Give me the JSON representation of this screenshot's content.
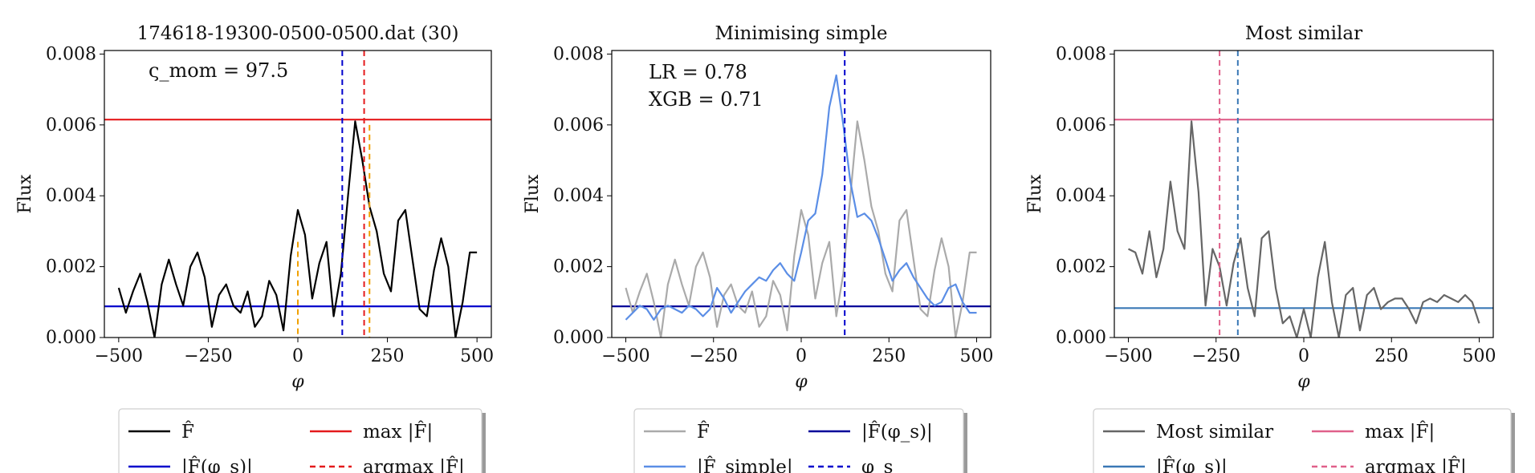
{
  "figure": {
    "panels": [
      {
        "title": "174618-19300-0500-0500.dat (30)",
        "annotations": [
          "ς_mom = 97.5"
        ],
        "xlabel": "φ",
        "ylabel": "Flux",
        "xlim": [
          -540,
          540
        ],
        "ylim": [
          0,
          0.0081
        ],
        "xticks": [
          -500,
          -250,
          0,
          250,
          500
        ],
        "xtick_labels": [
          "−500",
          "−250",
          "0",
          "250",
          "500"
        ],
        "yticks": [
          0,
          0.002,
          0.004,
          0.006,
          0.008
        ],
        "ytick_labels": [
          "0.000",
          "0.002",
          "0.004",
          "0.006",
          "0.008"
        ],
        "legend": {
          "location": "below",
          "entries": [
            {
              "label": "F̂",
              "color": "#000000",
              "style": "solid"
            },
            {
              "label": "max |F̂|",
              "color": "#e41a1c",
              "style": "solid"
            },
            {
              "label": "|F̂(φ_s)|",
              "color": "#0000cc",
              "style": "solid"
            },
            {
              "label": "argmax |F̂|",
              "color": "#e41a1c",
              "style": "dashed"
            }
          ]
        }
      },
      {
        "title": "Minimising simple",
        "annotations": [
          "LR = 0.78",
          "XGB = 0.71"
        ],
        "xlabel": "φ",
        "ylabel": "Flux",
        "xlim": [
          -540,
          540
        ],
        "ylim": [
          0,
          0.0081
        ],
        "xticks": [
          -500,
          -250,
          0,
          250,
          500
        ],
        "xtick_labels": [
          "−500",
          "−250",
          "0",
          "250",
          "500"
        ],
        "yticks": [
          0,
          0.002,
          0.004,
          0.006,
          0.008
        ],
        "ytick_labels": [
          "0.000",
          "0.002",
          "0.004",
          "0.006",
          "0.008"
        ],
        "legend": {
          "location": "below",
          "entries": [
            {
              "label": "F̂",
              "color": "#aaaaaa",
              "style": "solid"
            },
            {
              "label": "|F̂(φ_s)|",
              "color": "#000099",
              "style": "solid"
            },
            {
              "label": "|F̂_simple|",
              "color": "#5b8ee6",
              "style": "solid"
            },
            {
              "label": "φ_s",
              "color": "#0000cc",
              "style": "dashed"
            }
          ]
        }
      },
      {
        "title": "Most similar",
        "annotations": [],
        "xlabel": "φ",
        "ylabel": "Flux",
        "xlim": [
          -540,
          540
        ],
        "ylim": [
          0,
          0.0081
        ],
        "xticks": [
          -500,
          -250,
          0,
          250,
          500
        ],
        "xtick_labels": [
          "−500",
          "−250",
          "0",
          "250",
          "500"
        ],
        "yticks": [
          0,
          0.002,
          0.004,
          0.006,
          0.008
        ],
        "ytick_labels": [
          "0.000",
          "0.002",
          "0.004",
          "0.006",
          "0.008"
        ],
        "legend": {
          "location": "below",
          "entries": [
            {
              "label": "Most similar",
              "color": "#666666",
              "style": "solid"
            },
            {
              "label": "max |F̂|",
              "color": "#e0608a",
              "style": "solid"
            },
            {
              "label": "|F̂(φ_s)|",
              "color": "#3a78b5",
              "style": "solid"
            },
            {
              "label": "argmax |F̂|",
              "color": "#e0608a",
              "style": "dashed"
            }
          ]
        }
      }
    ]
  },
  "chart_data": [
    {
      "type": "line",
      "title": "174618-19300-0500-0500.dat (30)",
      "xlabel": "φ",
      "ylabel": "Flux",
      "xlim": [
        -540,
        540
      ],
      "ylim": [
        0,
        0.0081
      ],
      "series": [
        {
          "name": "F̂",
          "color": "#000000",
          "style": "solid",
          "x": [
            -500,
            -480,
            -460,
            -440,
            -420,
            -400,
            -380,
            -360,
            -340,
            -320,
            -300,
            -280,
            -260,
            -240,
            -220,
            -200,
            -180,
            -160,
            -140,
            -120,
            -100,
            -80,
            -60,
            -40,
            -20,
            0,
            20,
            40,
            60,
            80,
            100,
            120,
            140,
            160,
            180,
            200,
            220,
            240,
            260,
            280,
            300,
            320,
            340,
            360,
            380,
            400,
            420,
            440,
            460,
            480,
            500
          ],
          "y": [
            0.0014,
            0.0007,
            0.0013,
            0.0018,
            0.001,
            0.0,
            0.0015,
            0.0022,
            0.0015,
            0.0009,
            0.002,
            0.0024,
            0.0017,
            0.0003,
            0.0012,
            0.0015,
            0.0009,
            0.0007,
            0.0013,
            0.0003,
            0.0006,
            0.0016,
            0.0012,
            0.0002,
            0.0023,
            0.0036,
            0.0029,
            0.0011,
            0.0021,
            0.0027,
            0.0006,
            0.0018,
            0.004,
            0.0061,
            0.005,
            0.0037,
            0.003,
            0.0018,
            0.0013,
            0.0033,
            0.0036,
            0.0022,
            0.0008,
            0.0006,
            0.0019,
            0.0028,
            0.002,
            0.0,
            0.001,
            0.0024,
            0.0024
          ]
        }
      ],
      "hlines": [
        {
          "name": "max |F̂|",
          "y": 0.00615,
          "color": "#e41a1c",
          "style": "solid"
        },
        {
          "name": "|F̂(φ_s)|",
          "y": 0.00088,
          "color": "#0000cc",
          "style": "solid"
        }
      ],
      "vlines": [
        {
          "x": 124,
          "color": "#0000cc",
          "style": "dashed",
          "y_top": 0.0081
        },
        {
          "name": "argmax |F̂|",
          "x": 185,
          "color": "#e41a1c",
          "style": "dashed",
          "y_top": 0.0081
        },
        {
          "x": 0,
          "color": "#f0a000",
          "style": "dashed",
          "y_top": 0.0027
        },
        {
          "x": 200,
          "color": "#f0a000",
          "style": "dashed",
          "y_top": 0.006
        }
      ]
    },
    {
      "type": "line",
      "title": "Minimising simple",
      "xlabel": "φ",
      "ylabel": "Flux",
      "xlim": [
        -540,
        540
      ],
      "ylim": [
        0,
        0.0081
      ],
      "series": [
        {
          "name": "F̂",
          "color": "#aaaaaa",
          "style": "solid",
          "x": [
            -500,
            -480,
            -460,
            -440,
            -420,
            -400,
            -380,
            -360,
            -340,
            -320,
            -300,
            -280,
            -260,
            -240,
            -220,
            -200,
            -180,
            -160,
            -140,
            -120,
            -100,
            -80,
            -60,
            -40,
            -20,
            0,
            20,
            40,
            60,
            80,
            100,
            120,
            140,
            160,
            180,
            200,
            220,
            240,
            260,
            280,
            300,
            320,
            340,
            360,
            380,
            400,
            420,
            440,
            460,
            480,
            500
          ],
          "y": [
            0.0014,
            0.0007,
            0.0013,
            0.0018,
            0.001,
            0.0,
            0.0015,
            0.0022,
            0.0015,
            0.0009,
            0.002,
            0.0024,
            0.0017,
            0.0003,
            0.0012,
            0.0015,
            0.0009,
            0.0007,
            0.0013,
            0.0003,
            0.0006,
            0.0016,
            0.0012,
            0.0002,
            0.0023,
            0.0036,
            0.0029,
            0.0011,
            0.0021,
            0.0027,
            0.0006,
            0.0018,
            0.004,
            0.0061,
            0.005,
            0.0037,
            0.003,
            0.0018,
            0.0013,
            0.0033,
            0.0036,
            0.0022,
            0.0008,
            0.0006,
            0.0019,
            0.0028,
            0.002,
            0.0,
            0.001,
            0.0024,
            0.0024
          ]
        },
        {
          "name": "|F̂_simple|",
          "color": "#5b8ee6",
          "style": "solid",
          "x": [
            -500,
            -480,
            -460,
            -440,
            -420,
            -400,
            -380,
            -360,
            -340,
            -320,
            -300,
            -280,
            -260,
            -240,
            -220,
            -200,
            -180,
            -160,
            -140,
            -120,
            -100,
            -80,
            -60,
            -40,
            -20,
            0,
            20,
            40,
            60,
            80,
            100,
            120,
            140,
            160,
            180,
            200,
            220,
            240,
            260,
            280,
            300,
            320,
            340,
            360,
            380,
            400,
            420,
            440,
            460,
            480,
            500
          ],
          "y": [
            0.0005,
            0.0007,
            0.0009,
            0.0008,
            0.0005,
            0.0008,
            0.0009,
            0.0008,
            0.0007,
            0.0009,
            0.0008,
            0.0006,
            0.0008,
            0.0014,
            0.0011,
            0.0007,
            0.001,
            0.0013,
            0.0015,
            0.0017,
            0.0016,
            0.0019,
            0.0021,
            0.0018,
            0.0016,
            0.0024,
            0.0033,
            0.0035,
            0.0046,
            0.0065,
            0.0074,
            0.006,
            0.0044,
            0.0034,
            0.0035,
            0.0033,
            0.0028,
            0.0022,
            0.0016,
            0.0019,
            0.0021,
            0.0017,
            0.0014,
            0.0011,
            0.0009,
            0.001,
            0.0014,
            0.0015,
            0.001,
            0.0007,
            0.0007
          ]
        }
      ],
      "hlines": [
        {
          "name": "|F̂(φ_s)|",
          "y": 0.00088,
          "color": "#000099",
          "style": "solid"
        }
      ],
      "vlines": [
        {
          "name": "φ_s",
          "x": 124,
          "color": "#0000cc",
          "style": "dashed",
          "y_top": 0.0081
        }
      ]
    },
    {
      "type": "line",
      "title": "Most similar",
      "xlabel": "φ",
      "ylabel": "Flux",
      "xlim": [
        -540,
        540
      ],
      "ylim": [
        0,
        0.0081
      ],
      "series": [
        {
          "name": "Most similar",
          "color": "#666666",
          "style": "solid",
          "x": [
            -500,
            -480,
            -460,
            -440,
            -420,
            -400,
            -380,
            -360,
            -340,
            -320,
            -300,
            -280,
            -260,
            -240,
            -220,
            -200,
            -180,
            -160,
            -140,
            -120,
            -100,
            -80,
            -60,
            -40,
            -20,
            0,
            20,
            40,
            60,
            80,
            100,
            120,
            140,
            160,
            180,
            200,
            220,
            240,
            260,
            280,
            300,
            320,
            340,
            360,
            380,
            400,
            420,
            440,
            460,
            480,
            500
          ],
          "y": [
            0.0025,
            0.0024,
            0.0018,
            0.003,
            0.0017,
            0.0025,
            0.0044,
            0.003,
            0.0025,
            0.0061,
            0.0041,
            0.0009,
            0.0025,
            0.002,
            0.0009,
            0.0021,
            0.0028,
            0.0014,
            0.0006,
            0.0028,
            0.003,
            0.0014,
            0.0004,
            0.0006,
            0.0,
            0.0008,
            0.0,
            0.0017,
            0.0027,
            0.001,
            0.0,
            0.0012,
            0.0014,
            0.0002,
            0.0012,
            0.0014,
            0.0008,
            0.001,
            0.0011,
            0.0011,
            0.0008,
            0.0004,
            0.001,
            0.0011,
            0.001,
            0.0012,
            0.0011,
            0.001,
            0.0012,
            0.001,
            0.0004
          ]
        }
      ],
      "hlines": [
        {
          "name": "max |F̂|",
          "y": 0.00615,
          "color": "#e0608a",
          "style": "solid"
        },
        {
          "name": "|F̂(φ_s)|",
          "y": 0.00083,
          "color": "#3a78b5",
          "style": "solid"
        }
      ],
      "vlines": [
        {
          "name": "argmax |F̂|",
          "x": -240,
          "color": "#e0608a",
          "style": "dashed",
          "y_top": 0.0081
        },
        {
          "x": -188,
          "color": "#3a78b5",
          "style": "dashed",
          "y_top": 0.0081
        }
      ]
    }
  ]
}
